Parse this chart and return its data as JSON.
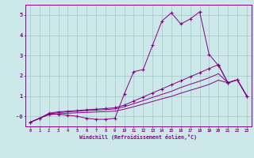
{
  "xlabel": "Windchill (Refroidissement éolien,°C)",
  "background_color": "#cce8e8",
  "grid_color": "#aacccc",
  "line_color": "#880088",
  "x_values": [
    0,
    1,
    2,
    3,
    4,
    5,
    6,
    7,
    8,
    9,
    10,
    11,
    12,
    13,
    14,
    15,
    16,
    17,
    18,
    19,
    20,
    21,
    22,
    23
  ],
  "series1": [
    -0.3,
    -0.1,
    0.1,
    0.1,
    0.05,
    0.0,
    -0.1,
    -0.15,
    -0.15,
    -0.1,
    1.1,
    2.2,
    2.3,
    3.5,
    4.7,
    5.1,
    4.55,
    4.8,
    5.15,
    3.05,
    2.5,
    1.65,
    1.8,
    1.0
  ],
  "series2": [
    -0.3,
    -0.1,
    0.15,
    0.22,
    0.25,
    0.28,
    0.32,
    0.35,
    0.38,
    0.42,
    0.55,
    0.75,
    0.95,
    1.15,
    1.35,
    1.55,
    1.75,
    1.95,
    2.15,
    2.35,
    2.55,
    1.65,
    1.8,
    1.0
  ],
  "series3": [
    -0.3,
    -0.1,
    0.12,
    0.18,
    0.22,
    0.25,
    0.28,
    0.3,
    0.33,
    0.36,
    0.47,
    0.62,
    0.77,
    0.93,
    1.08,
    1.23,
    1.42,
    1.58,
    1.73,
    1.9,
    2.1,
    1.65,
    1.8,
    1.0
  ],
  "series4": [
    -0.3,
    -0.1,
    0.08,
    0.12,
    0.15,
    0.17,
    0.19,
    0.21,
    0.23,
    0.25,
    0.35,
    0.47,
    0.6,
    0.73,
    0.86,
    0.98,
    1.14,
    1.28,
    1.42,
    1.57,
    1.78,
    1.65,
    1.8,
    1.0
  ],
  "ylim": [
    -0.5,
    5.5
  ],
  "xlim": [
    -0.5,
    23.5
  ],
  "yticks": [
    0,
    1,
    2,
    3,
    4,
    5
  ],
  "ytick_labels": [
    "-0",
    "1",
    "2",
    "3",
    "4",
    "5"
  ],
  "xticks": [
    0,
    1,
    2,
    3,
    4,
    5,
    6,
    7,
    8,
    9,
    10,
    11,
    12,
    13,
    14,
    15,
    16,
    17,
    18,
    19,
    20,
    21,
    22,
    23
  ]
}
